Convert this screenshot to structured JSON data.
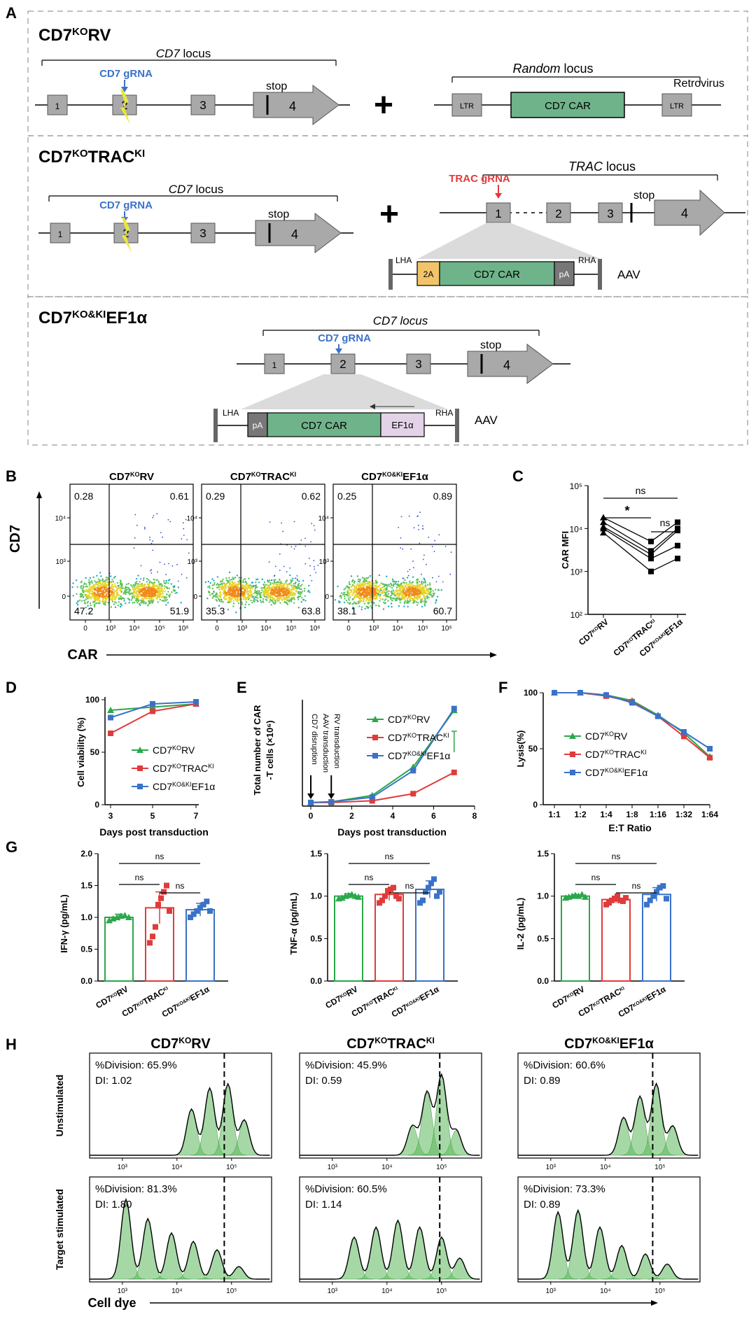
{
  "colors": {
    "green": "#2aa84a",
    "red": "#e03b3b",
    "blue": "#3a72c8",
    "car": "#6fb38a",
    "yellow": "#f2c46a",
    "pink": "#e3d2e8",
    "gray": "#a9a9a9",
    "hist": "#5cb85c"
  },
  "panelA": {
    "label": "A",
    "rv": {
      "title": "CD7",
      "sup": "KO",
      "suffix": "RV",
      "locus": "CD7",
      "locus_rest": " locus",
      "grna": "CD7 gRNA",
      "exons": [
        "1",
        "2",
        "3",
        "4"
      ],
      "stop": "stop",
      "random": "Random",
      "random_rest": " locus",
      "ltr": "LTR",
      "car": "CD7 CAR",
      "retro": "Retrovirus"
    },
    "trac": {
      "title": "CD7",
      "sup1": "KO",
      "mid": "TRAC",
      "sup2": "KI",
      "locus": "CD7",
      "locus_rest": " locus",
      "grna": "CD7 gRNA",
      "exons": [
        "1",
        "2",
        "3",
        "4"
      ],
      "stop": "stop",
      "trac_locus": "TRAC",
      "trac_rest": " locus",
      "trac_grna": "TRAC gRNA",
      "lha": "LHA",
      "rha": "RHA",
      "t2a": "2A",
      "car": "CD7 CAR",
      "pa": "pA",
      "aav": "AAV"
    },
    "ef1a": {
      "title": "CD7",
      "sup": "KO&KI",
      "suffix": "EF1α",
      "locus": "CD7 locus",
      "grna": "CD7 gRNA",
      "exons": [
        "1",
        "2",
        "3",
        "4"
      ],
      "stop": "stop",
      "lha": "LHA",
      "rha": "RHA",
      "pa": "pA",
      "car": "CD7 CAR",
      "promoter": "EF1α",
      "aav": "AAV"
    }
  },
  "panelB": {
    "label": "B",
    "ylabel": "CD7",
    "xlabel": "CAR",
    "yticks": [
      "10⁴",
      "10³",
      "0"
    ],
    "xticks": [
      "0",
      "10³",
      "10⁴",
      "10⁵",
      "10⁶"
    ],
    "plots": [
      {
        "title": "CD7",
        "sup": "KO",
        "suffix": "RV",
        "q": [
          "0.28",
          "0.61",
          "47.2",
          "51.9"
        ]
      },
      {
        "title": "CD7",
        "sup": "KO",
        "suffix": "TRAC",
        "sup2": "KI",
        "q": [
          "0.29",
          "0.62",
          "35.3",
          "63.8"
        ]
      },
      {
        "title": "CD7",
        "sup": "KO&KI",
        "suffix": "EF1α",
        "q": [
          "0.25",
          "0.89",
          "38.1",
          "60.7"
        ]
      }
    ]
  },
  "chart_data": [
    {
      "id": "C",
      "type": "scatter",
      "ylabel": "CAR MFI",
      "yscale": "log",
      "ylim": [
        100,
        100000
      ],
      "yticks": [
        "10⁵",
        "10⁴",
        "10³",
        "10²"
      ],
      "categories": [
        "CD7KORV",
        "CD7KOTRACKI",
        "CD7KO&KIEF1α"
      ],
      "category_labels": [
        {
          "a": "CD7",
          "s": "KO",
          "b": "RV",
          "s2": ""
        },
        {
          "a": "CD7",
          "s": "KO",
          "b": "TRAC",
          "s2": "KI"
        },
        {
          "a": "CD7",
          "s": "KO&KI",
          "b": "EF1α",
          "s2": ""
        }
      ],
      "series": [
        {
          "values": [
            18000,
            5000,
            14000
          ]
        },
        {
          "values": [
            14000,
            3000,
            10000
          ]
        },
        {
          "values": [
            11000,
            2500,
            9000
          ]
        },
        {
          "values": [
            10000,
            2000,
            4000
          ]
        },
        {
          "values": [
            8000,
            1000,
            2000
          ]
        }
      ],
      "sig": [
        "ns",
        "*",
        "ns"
      ]
    },
    {
      "id": "D",
      "type": "line",
      "ylabel": "Cell viability (%)",
      "xlabel": "Days post transduction",
      "x": [
        3,
        5,
        7
      ],
      "xticks": [
        "3",
        "5",
        "7"
      ],
      "ylim": [
        0,
        100
      ],
      "yticks": [
        "100",
        "50",
        "0"
      ],
      "series": [
        {
          "name": "CD7KORV",
          "label": {
            "a": "CD7",
            "s": "KO",
            "b": "RV"
          },
          "color": "green",
          "marker": "triangle",
          "values": [
            90,
            93,
            96
          ]
        },
        {
          "name": "CD7KOTRACKI",
          "label": {
            "a": "CD7",
            "s": "KO",
            "b": "TRAC",
            "s2": "KI"
          },
          "color": "red",
          "marker": "square",
          "values": [
            68,
            89,
            96
          ]
        },
        {
          "name": "CD7KO&KIEF1α",
          "label": {
            "a": "CD7",
            "s": "KO&KI",
            "b": "EF1α"
          },
          "color": "blue",
          "marker": "square",
          "values": [
            83,
            96,
            98
          ]
        }
      ]
    },
    {
      "id": "E",
      "type": "line",
      "ylabel": "Total number of CAR -T cells (×10⁶)",
      "xlabel": "Days post transduction",
      "x": [
        0,
        1,
        3,
        5,
        7
      ],
      "xlim": [
        0,
        8
      ],
      "xticks": [
        "0",
        "2",
        "4",
        "6",
        "8"
      ],
      "ylim": [
        0,
        30
      ],
      "annotations": [
        "CD7 disruption",
        "AAV transduction",
        "RV transduction"
      ],
      "series": [
        {
          "name": "CD7KORV",
          "label": {
            "a": "CD7",
            "s": "KO",
            "b": "RV"
          },
          "color": "green",
          "marker": "triangle",
          "values": [
            1,
            1.2,
            3,
            11,
            27
          ]
        },
        {
          "name": "CD7KOTRACKI",
          "label": {
            "a": "CD7",
            "s": "KO",
            "b": "TRAC",
            "s2": "KI"
          },
          "color": "red",
          "marker": "square",
          "values": [
            1,
            1.0,
            1.5,
            3.5,
            9.5
          ]
        },
        {
          "name": "CD7KO&KIEF1α",
          "label": {
            "a": "CD7",
            "s": "KO&KI",
            "b": "EF1α"
          },
          "color": "blue",
          "marker": "square",
          "values": [
            1,
            1.2,
            2.5,
            10,
            27.5
          ]
        }
      ]
    },
    {
      "id": "F",
      "type": "line",
      "ylabel": "Lysis(%)",
      "xlabel": "E:T Ratio",
      "categories": [
        "1:1",
        "1:2",
        "1:4",
        "1:8",
        "1:16",
        "1:32",
        "1:64"
      ],
      "ylim": [
        0,
        100
      ],
      "yticks": [
        "100",
        "50",
        "0"
      ],
      "series": [
        {
          "name": "CD7KORV",
          "label": {
            "a": "CD7",
            "s": "KO",
            "b": "RV"
          },
          "color": "green",
          "marker": "triangle",
          "values": [
            100,
            100,
            98,
            93,
            80,
            64,
            43
          ]
        },
        {
          "name": "CD7KOTRACKI",
          "label": {
            "a": "CD7",
            "s": "KO",
            "b": "TRAC",
            "s2": "KI"
          },
          "color": "red",
          "marker": "square",
          "values": [
            100,
            100,
            97,
            92,
            79,
            61,
            42
          ]
        },
        {
          "name": "CD7KO&KIEF1α",
          "label": {
            "a": "CD7",
            "s": "KO&KI",
            "b": "EF1α"
          },
          "color": "blue",
          "marker": "square",
          "values": [
            100,
            100,
            98,
            91,
            79,
            65,
            50
          ]
        }
      ]
    },
    {
      "id": "G1",
      "type": "bar",
      "ylabel": "IFN-γ (pg/mL)",
      "ylim": [
        0,
        2
      ],
      "yticks": [
        "2.0",
        "1.5",
        "1.0",
        "0.5",
        "0.0"
      ],
      "values": [
        1.0,
        1.15,
        1.12
      ],
      "err": [
        0.05,
        0.25,
        0.1
      ],
      "sig": [
        "ns",
        "ns",
        "ns"
      ],
      "points": [
        [
          0.95,
          0.98,
          1.0,
          1.02,
          1.03,
          1.0
        ],
        [
          0.6,
          0.7,
          0.85,
          1.2,
          1.3,
          1.4,
          1.5,
          1.1
        ],
        [
          1.0,
          1.05,
          1.1,
          1.15,
          1.2,
          1.25,
          1.1
        ]
      ]
    },
    {
      "id": "G2",
      "type": "bar",
      "ylabel": "TNF-α (pg/mL)",
      "ylim": [
        0,
        1.5
      ],
      "yticks": [
        "1.5",
        "1.0",
        "0.5",
        "0.0"
      ],
      "values": [
        1.0,
        1.02,
        1.08
      ],
      "err": [
        0.03,
        0.07,
        0.1
      ],
      "sig": [
        "ns",
        "ns",
        "ns"
      ],
      "points": [
        [
          0.97,
          0.98,
          1.0,
          1.01,
          1.02,
          1.0,
          0.99
        ],
        [
          0.92,
          0.95,
          1.0,
          1.05,
          1.08,
          1.1,
          1.0,
          0.97
        ],
        [
          0.92,
          0.95,
          1.05,
          1.1,
          1.15,
          1.2,
          1.0,
          1.05
        ]
      ]
    },
    {
      "id": "G3",
      "type": "bar",
      "ylabel": "IL-2 (pg/mL)",
      "ylim": [
        0,
        1.5
      ],
      "yticks": [
        "1.5",
        "1.0",
        "0.5",
        "0.0"
      ],
      "values": [
        1.0,
        0.96,
        1.02
      ],
      "err": [
        0.02,
        0.04,
        0.08
      ],
      "sig": [
        "ns",
        "ns",
        "ns"
      ],
      "points": [
        [
          0.98,
          0.99,
          1.0,
          1.01,
          1.0,
          1.02,
          0.99
        ],
        [
          0.9,
          0.92,
          0.95,
          0.97,
          1.0,
          0.95,
          0.94,
          0.98
        ],
        [
          0.9,
          0.95,
          1.0,
          1.05,
          1.1,
          1.12,
          0.97
        ]
      ]
    }
  ],
  "panelG": {
    "label": "G",
    "categories": [
      {
        "a": "CD7",
        "s": "KO",
        "b": "RV"
      },
      {
        "a": "CD7",
        "s": "KO",
        "b": "TRAC",
        "s2": "KI"
      },
      {
        "a": "CD7",
        "s": "KO&KI",
        "b": "EF1α"
      }
    ]
  },
  "panelH": {
    "label": "H",
    "xlabel": "Cell dye",
    "rows": [
      "Unstimulated",
      "Target stimulated"
    ],
    "xticks": [
      "10³",
      "10⁴",
      "10⁵"
    ],
    "titles": [
      {
        "a": "CD7",
        "s": "KO",
        "b": "RV"
      },
      {
        "a": "CD7",
        "s": "KO",
        "b": "TRAC",
        "s2": "KI"
      },
      {
        "a": "CD7",
        "s": "KO&KI",
        "b": "EF1α"
      }
    ],
    "cells": [
      [
        {
          "div": "%Division: 65.9%",
          "di": "DI:  1.02"
        },
        {
          "div": "%Division: 45.9%",
          "di": "DI:  0.59"
        },
        {
          "div": "%Division: 60.6%",
          "di": "DI:  0.89"
        }
      ],
      [
        {
          "div": "%Division:  81.3%",
          "di": "DI:  1.80"
        },
        {
          "div": "%Division: 60.5%",
          "di": "DI:  1.14"
        },
        {
          "div": "%Division: 73.3%",
          "di": "DI:  0.89"
        }
      ]
    ]
  }
}
